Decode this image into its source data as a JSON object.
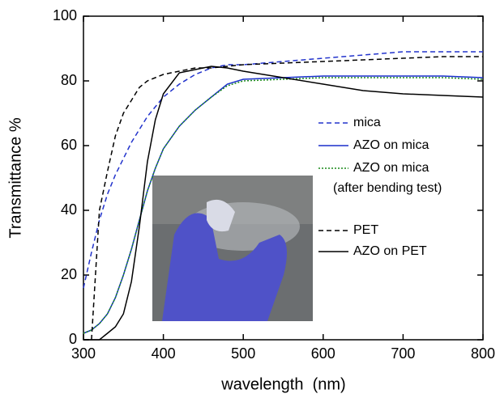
{
  "chart_data": {
    "type": "line",
    "xlabel": "wavelength  (nm)",
    "ylabel": "Transmittance %",
    "x": [
      300,
      310,
      320,
      330,
      340,
      350,
      360,
      370,
      380,
      390,
      400,
      420,
      440,
      460,
      480,
      500,
      550,
      600,
      650,
      700,
      750,
      800
    ],
    "series": [
      {
        "name": "mica",
        "color": "#2233cc",
        "dash": "6,4",
        "values": [
          16,
          27,
          37,
          45,
          51,
          56,
          61,
          65,
          69,
          72,
          75,
          79,
          82,
          84,
          85,
          85,
          86,
          87,
          88,
          89,
          89,
          89
        ]
      },
      {
        "name": "AZO on mica",
        "color": "#1a2fcc",
        "dash": "",
        "values": [
          2,
          3,
          5,
          8,
          13,
          20,
          28,
          37,
          46,
          53,
          59,
          66,
          71,
          75,
          79,
          80.5,
          81,
          81.5,
          81.5,
          81.5,
          81.5,
          81
        ]
      },
      {
        "name": "AZO on mica",
        "legend_note": "(after bending test)",
        "color": "#1a8a1a",
        "dash": "2,2",
        "values": [
          2,
          3,
          5,
          8,
          13,
          20,
          28,
          37,
          46,
          53,
          59,
          66,
          71,
          75,
          78.5,
          80,
          80.5,
          81,
          81,
          81,
          81,
          80.5
        ]
      },
      {
        "name": "PET",
        "color": "#000000",
        "dash": "6,4",
        "values": [
          0,
          0,
          40,
          52,
          63,
          70,
          74,
          78,
          80,
          81,
          82,
          83,
          84,
          84,
          84.5,
          85,
          85.5,
          86,
          86.5,
          87,
          87.5,
          87.5
        ]
      },
      {
        "name": "AZO on PET",
        "color": "#000000",
        "dash": "",
        "values": [
          0,
          0,
          0,
          2,
          4,
          8,
          18,
          35,
          55,
          68,
          76,
          82.5,
          83.5,
          84.5,
          84,
          83,
          81,
          79,
          77,
          76,
          75.5,
          75
        ]
      }
    ],
    "xlim": [
      300,
      800
    ],
    "xticks": [
      300,
      400,
      500,
      600,
      700,
      800
    ],
    "ylim": [
      0,
      100
    ],
    "yticks": [
      0,
      20,
      40,
      60,
      80,
      100
    ]
  }
}
